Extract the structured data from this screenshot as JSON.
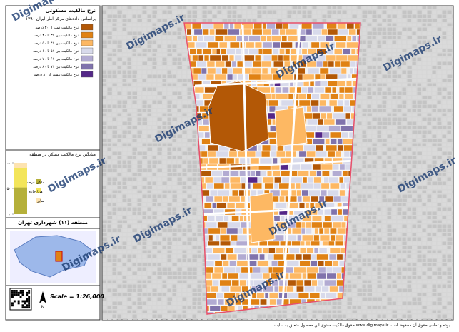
{
  "legend": {
    "title": "نرخ مالکیت مسکونی",
    "subtitle": "براساس داده‌های مرکز آمار ایران ۱۳۹۰",
    "items": [
      {
        "label": "نرخ مالکیت کمتر از ۳۰ درصد",
        "color": "#b35806"
      },
      {
        "label": "نرخ مالکیت بین ۳۱ تا ۴۰ درصد",
        "color": "#e08214"
      },
      {
        "label": "نرخ مالکیت بین ۴۱ تا ۵۰ درصد",
        "color": "#fdb863"
      },
      {
        "label": "نرخ مالکیت بین ۵۱ تا ۶۰ درصد",
        "color": "#d8daeb"
      },
      {
        "label": "نرخ مالکیت بین ۶۱ تا ۷۰ درصد",
        "color": "#b2abd2"
      },
      {
        "label": "نرخ مالکیت بین ۷۱ تا ۸۰ درصد",
        "color": "#8073ac"
      },
      {
        "label": "نرخ مالکیت بیشتر از ۸۱ درصد",
        "color": "#542788"
      }
    ]
  },
  "chart_data": {
    "type": "stacked-bar",
    "title": "میانگین نرخ مالکیت مسکن در منطقه",
    "ylim": [
      0,
      100
    ],
    "yticks": [
      {
        "value": 0,
        "label": "۰"
      },
      {
        "value": 50,
        "label": "۵۰"
      },
      {
        "value": 100,
        "label": "۱۰۰"
      }
    ],
    "series": [
      {
        "name": "ملکی عرصه و اعیان",
        "color": "#b5b03a",
        "values": [
          52
        ]
      },
      {
        "name": "رهن/اجاره",
        "color": "#f3e55a",
        "values": [
          37
        ]
      },
      {
        "name": "سایر",
        "color": "#fde3b0",
        "values": [
          11
        ]
      }
    ]
  },
  "inset": {
    "title": "منطقه (۱۱) شهرداری تهران"
  },
  "scale": "Scale = 1:26,000",
  "watermark": "Digimaps.ir",
  "footer": "حقوق مالکیت معنوی این محصول متعلق به سایت www.digimaps.ir بوده و تمامی حقوق آن محفوظ است."
}
